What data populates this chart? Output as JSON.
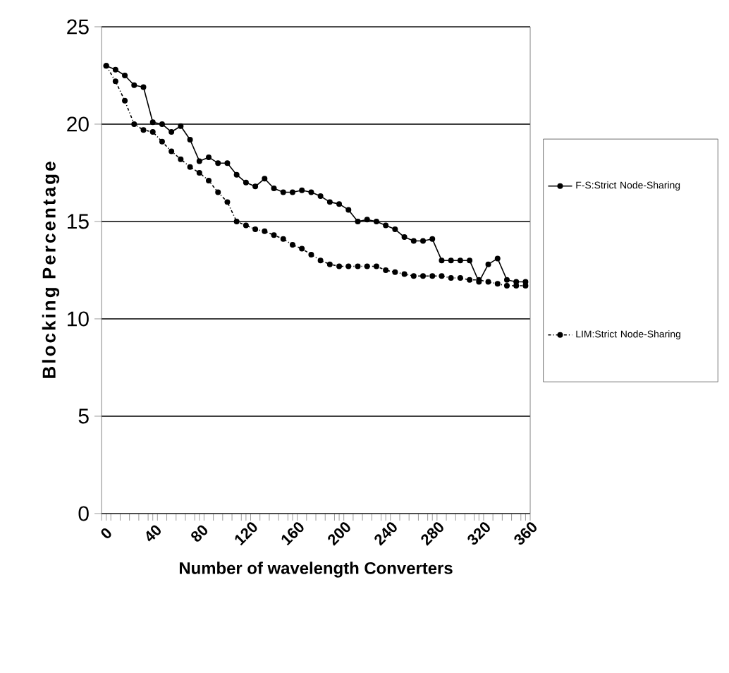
{
  "chart_data": {
    "type": "line",
    "xlabel": "Number of wavelength Converters",
    "ylabel": "Blocking Percentage",
    "x": [
      0,
      8,
      16,
      24,
      32,
      40,
      48,
      56,
      64,
      72,
      80,
      88,
      96,
      104,
      112,
      120,
      128,
      136,
      144,
      152,
      160,
      168,
      176,
      184,
      192,
      200,
      208,
      216,
      224,
      232,
      240,
      248,
      256,
      264,
      272,
      280,
      288,
      296,
      304,
      312,
      320,
      328,
      336,
      344,
      352,
      360
    ],
    "series": [
      {
        "name": "F-S:Strict Node-Sharing",
        "color": "#000000",
        "line_style": "solid",
        "values": [
          23.0,
          22.8,
          22.5,
          22.0,
          21.9,
          20.1,
          20.0,
          19.6,
          19.9,
          19.2,
          18.1,
          18.3,
          18.0,
          18.0,
          17.4,
          17.0,
          16.8,
          17.2,
          16.7,
          16.5,
          16.5,
          16.6,
          16.5,
          16.3,
          16.0,
          15.9,
          15.6,
          15.0,
          15.1,
          15.0,
          14.8,
          14.6,
          14.2,
          14.0,
          14.0,
          14.1,
          13.0,
          13.0,
          13.0,
          13.0,
          11.9,
          12.8,
          13.1,
          12.0,
          11.9,
          11.9
        ]
      },
      {
        "name": "LIM:Strict Node-Sharing",
        "color": "#000000",
        "line_style": "dashed",
        "values": [
          23.0,
          22.2,
          21.2,
          20.0,
          19.7,
          19.6,
          19.1,
          18.6,
          18.2,
          17.8,
          17.5,
          17.1,
          16.5,
          16.0,
          15.0,
          14.8,
          14.6,
          14.5,
          14.3,
          14.1,
          13.8,
          13.6,
          13.3,
          13.0,
          12.8,
          12.7,
          12.7,
          12.7,
          12.7,
          12.7,
          12.5,
          12.4,
          12.3,
          12.2,
          12.2,
          12.2,
          12.2,
          12.1,
          12.1,
          12.0,
          12.0,
          11.9,
          11.8,
          11.7,
          11.7,
          11.7
        ]
      }
    ],
    "xlim": [
      -4,
      364
    ],
    "xticks": [
      0,
      40,
      80,
      120,
      160,
      200,
      240,
      280,
      320,
      360,
      {
        "value": -4,
        "label": null
      },
      {
        "value": 4,
        "label": null
      },
      {
        "value": 12,
        "label": null
      },
      {
        "value": 20,
        "label": null
      },
      {
        "value": 28,
        "label": null
      },
      {
        "value": 36,
        "label": null
      },
      {
        "value": 44,
        "label": null
      },
      {
        "value": 52,
        "label": null
      },
      {
        "value": 60,
        "label": null
      },
      {
        "value": 68,
        "label": null
      },
      {
        "value": 76,
        "label": null
      },
      {
        "value": 84,
        "label": null
      },
      {
        "value": 92,
        "label": null
      },
      {
        "value": 100,
        "label": null
      },
      {
        "value": 108,
        "label": null
      },
      {
        "value": 116,
        "label": null
      },
      {
        "value": 124,
        "label": null
      },
      {
        "value": 132,
        "label": null
      },
      {
        "value": 140,
        "label": null
      },
      {
        "value": 148,
        "label": null
      },
      {
        "value": 156,
        "label": null
      },
      {
        "value": 164,
        "label": null
      },
      {
        "value": 172,
        "label": null
      },
      {
        "value": 180,
        "label": null
      },
      {
        "value": 188,
        "label": null
      },
      {
        "value": 196,
        "label": null
      },
      {
        "value": 204,
        "label": null
      },
      {
        "value": 212,
        "label": null
      },
      {
        "value": 220,
        "label": null
      },
      {
        "value": 228,
        "label": null
      },
      {
        "value": 236,
        "label": null
      },
      {
        "value": 244,
        "label": null
      },
      {
        "value": 252,
        "label": null
      },
      {
        "value": 260,
        "label": null
      },
      {
        "value": 268,
        "label": null
      },
      {
        "value": 276,
        "label": null
      },
      {
        "value": 284,
        "label": null
      },
      {
        "value": 292,
        "label": null
      },
      {
        "value": 300,
        "label": null
      },
      {
        "value": 308,
        "label": null
      },
      {
        "value": 316,
        "label": null
      },
      {
        "value": 324,
        "label": null
      },
      {
        "value": 332,
        "label": null
      },
      {
        "value": 340,
        "label": null
      },
      {
        "value": 348,
        "label": null
      },
      {
        "value": 356,
        "label": null
      },
      {
        "value": 364,
        "label": null
      }
    ],
    "ylim": [
      0,
      25
    ],
    "yticks": [
      0,
      5,
      10,
      15,
      20,
      25
    ],
    "grid": "y",
    "legend": "right",
    "marker": "circle"
  }
}
